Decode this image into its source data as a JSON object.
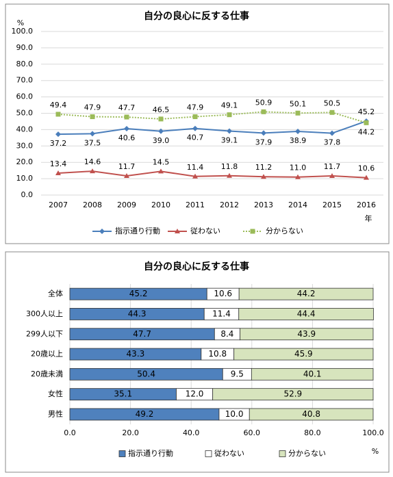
{
  "chart_data": [
    {
      "type": "line",
      "title": "自分の良心に反する仕事",
      "y_label": "%",
      "x_label": "年",
      "categories": [
        "2007",
        "2008",
        "2009",
        "2010",
        "2011",
        "2012",
        "2013",
        "2014",
        "2015",
        "2016"
      ],
      "ylim": [
        0,
        100
      ],
      "yticks": [
        {
          "value": 0,
          "label": "0.0"
        },
        {
          "value": 10,
          "label": "10.0"
        },
        {
          "value": 20,
          "label": "20.0"
        },
        {
          "value": 30,
          "label": "30.0"
        },
        {
          "value": 40,
          "label": "40.0"
        },
        {
          "value": 50,
          "label": "50.0"
        },
        {
          "value": 60,
          "label": "60.0"
        },
        {
          "value": 70,
          "label": "70.0"
        },
        {
          "value": 80,
          "label": "80.0"
        },
        {
          "value": 90,
          "label": "90.0"
        },
        {
          "value": 100,
          "label": "100.0"
        }
      ],
      "grid": true,
      "series": [
        {
          "name": "指示通り行動",
          "color": "#4a7ebb",
          "marker": "diamond",
          "dash": "solid",
          "values": [
            37.2,
            37.5,
            40.6,
            39.0,
            40.7,
            39.1,
            37.9,
            38.9,
            37.8,
            45.2
          ],
          "value_labels": [
            "37.2",
            "37.5",
            "40.6",
            "39.0",
            "40.7",
            "39.1",
            "37.9",
            "38.9",
            "37.8",
            "45.2"
          ]
        },
        {
          "name": "従わない",
          "color": "#c0504d",
          "marker": "triangle",
          "dash": "solid",
          "values": [
            13.4,
            14.6,
            11.7,
            14.5,
            11.4,
            11.8,
            11.2,
            11.0,
            11.7,
            10.6
          ],
          "value_labels": [
            "13.4",
            "14.6",
            "11.7",
            "14.5",
            "11.4",
            "11.8",
            "11.2",
            "11.0",
            "11.7",
            "10.6"
          ]
        },
        {
          "name": "分からない",
          "color": "#9bbb59",
          "marker": "square",
          "dash": "dotted",
          "values": [
            49.4,
            47.9,
            47.7,
            46.5,
            47.9,
            49.1,
            50.9,
            50.1,
            50.5,
            44.2
          ],
          "value_labels": [
            "49.4",
            "47.9",
            "47.7",
            "46.5",
            "47.9",
            "49.1",
            "50.9",
            "50.1",
            "50.5",
            "44.2"
          ]
        }
      ]
    },
    {
      "type": "bar",
      "orientation": "horizontal",
      "stacked": true,
      "title": "自分の良心に反する仕事",
      "x_label": "%",
      "categories": [
        "全体",
        "300人以上",
        "299人以下",
        "20歳以上",
        "20歳未満",
        "女性",
        "男性"
      ],
      "xlim": [
        0,
        100
      ],
      "xticks": [
        {
          "value": 0,
          "label": "0.0"
        },
        {
          "value": 20,
          "label": "20.0"
        },
        {
          "value": 40,
          "label": "40.0"
        },
        {
          "value": 60,
          "label": "60.0"
        },
        {
          "value": 80,
          "label": "80.0"
        },
        {
          "value": 100,
          "label": "100.0"
        }
      ],
      "grid": true,
      "series": [
        {
          "name": "指示通り行動",
          "color": "#4f81bd",
          "text_color": "#ffffff",
          "values": [
            45.2,
            44.3,
            47.7,
            43.3,
            50.4,
            35.1,
            49.2
          ],
          "value_labels": [
            "45.2",
            "44.3",
            "47.7",
            "43.3",
            "50.4",
            "35.1",
            "49.2"
          ]
        },
        {
          "name": "従わない",
          "color": "#ffffff",
          "text_color": "#000000",
          "values": [
            10.6,
            11.4,
            8.4,
            10.8,
            9.5,
            12.0,
            10.0
          ],
          "value_labels": [
            "10.6",
            "11.4",
            "8.4",
            "10.8",
            "9.5",
            "12.0",
            "10.0"
          ]
        },
        {
          "name": "分からない",
          "color": "#d7e4bd",
          "text_color": "#000000",
          "values": [
            44.2,
            44.4,
            43.9,
            45.9,
            40.1,
            52.9,
            40.8
          ],
          "value_labels": [
            "44.2",
            "44.4",
            "43.9",
            "45.9",
            "40.1",
            "52.9",
            "40.8"
          ]
        }
      ]
    }
  ]
}
